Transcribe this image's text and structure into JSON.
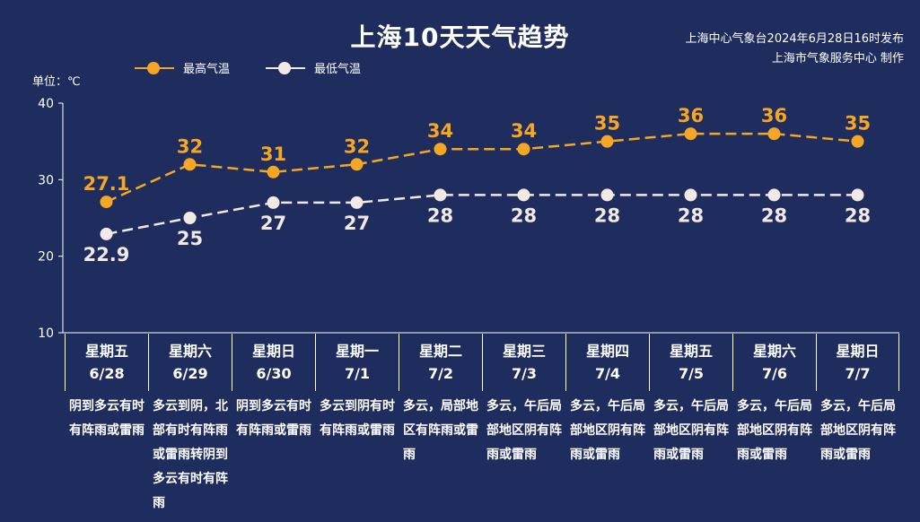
{
  "title": "上海10天天气趋势",
  "source_line1": "上海中心气象台2024年6月28日16时发布",
  "source_line2": "上海市气象服务中心 制作",
  "unit_label": "单位：℃",
  "colors": {
    "background": "#1f2d5e",
    "high": "#f5a623",
    "low": "#f2e9e4"
  },
  "legend": {
    "high_label": "最高气温",
    "low_label": "最低气温"
  },
  "days": [
    {
      "weekday": "星期五",
      "date": "6/28",
      "desc": "阴到多云有时有阵雨或雷雨"
    },
    {
      "weekday": "星期六",
      "date": "6/29",
      "desc": "多云到阴，北部有时有阵雨或雷雨转阴到多云有时有阵雨"
    },
    {
      "weekday": "星期日",
      "date": "6/30",
      "desc": "阴到多云有时有阵雨或雷雨"
    },
    {
      "weekday": "星期一",
      "date": "7/1",
      "desc": "多云到阴有时有阵雨或雷雨"
    },
    {
      "weekday": "星期二",
      "date": "7/2",
      "desc": "多云，局部地区有阵雨或雷雨"
    },
    {
      "weekday": "星期三",
      "date": "7/3",
      "desc": "多云，午后局部地区阴有阵雨或雷雨"
    },
    {
      "weekday": "星期四",
      "date": "7/4",
      "desc": "多云，午后局部地区阴有阵雨或雷雨"
    },
    {
      "weekday": "星期五",
      "date": "7/5",
      "desc": "多云，午后局部地区阴有阵雨或雷雨"
    },
    {
      "weekday": "星期六",
      "date": "7/6",
      "desc": "多云，午后局部地区阴有阵雨或雷雨"
    },
    {
      "weekday": "星期日",
      "date": "7/7",
      "desc": "多云，午后局部地区阴有阵雨或雷雨"
    }
  ],
  "chart_data": {
    "type": "line",
    "title": "上海10天天气趋势",
    "ylabel": "单位：℃",
    "ylim": [
      10,
      40
    ],
    "yticks": [
      10,
      20,
      30,
      40
    ],
    "categories": [
      "6/28",
      "6/29",
      "6/30",
      "7/1",
      "7/2",
      "7/3",
      "7/4",
      "7/5",
      "7/6",
      "7/7"
    ],
    "series": [
      {
        "name": "最高气温",
        "values": [
          27.1,
          32,
          31,
          32,
          34,
          34,
          35,
          36,
          36,
          35
        ],
        "labels": [
          "27.1",
          "32",
          "31",
          "32",
          "34",
          "34",
          "35",
          "36",
          "36",
          "35"
        ]
      },
      {
        "name": "最低气温",
        "values": [
          22.9,
          25,
          27,
          27,
          28,
          28,
          28,
          28,
          28,
          28
        ],
        "labels": [
          "22.9",
          "25",
          "27",
          "27",
          "28",
          "28",
          "28",
          "28",
          "28",
          "28"
        ]
      }
    ],
    "legend_position": "top-left",
    "grid": false,
    "line_style": "dashed"
  }
}
